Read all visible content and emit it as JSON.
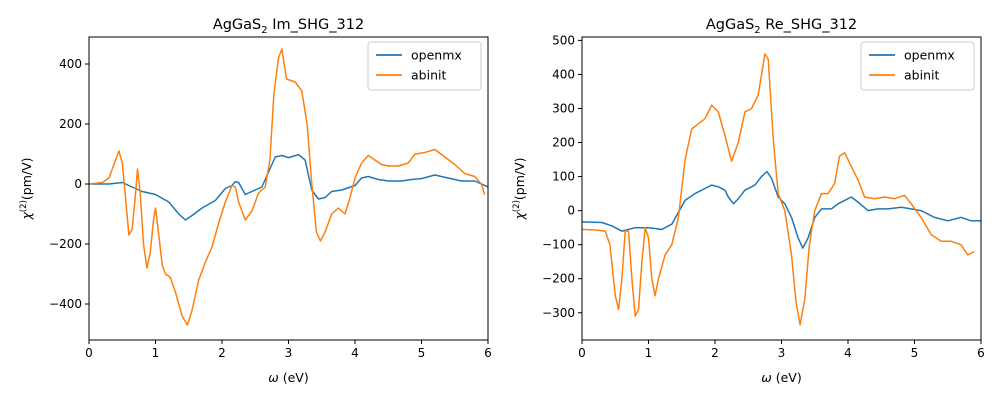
{
  "chart_data": [
    {
      "type": "line",
      "title_main": "AgGaS",
      "title_sub": "2",
      "title_rest": " Im_SHG_312",
      "xlabel_sym": "ω",
      "xlabel_rest": " (eV)",
      "ylabel_sym": "χ",
      "ylabel_sup": "(2)",
      "ylabel_rest": "(pm/V)",
      "xlim": [
        0,
        6
      ],
      "ylim": [
        -520,
        490
      ],
      "xticks": [
        0,
        1,
        2,
        3,
        4,
        5,
        6
      ],
      "yticks": [
        -400,
        -200,
        0,
        200,
        400
      ],
      "legend_position": "upper right",
      "series": [
        {
          "name": "openmx",
          "color": "#1f77b4",
          "points": [
            [
              0,
              0
            ],
            [
              0.3,
              0
            ],
            [
              0.5,
              5
            ],
            [
              0.6,
              -5
            ],
            [
              0.8,
              -25
            ],
            [
              1.0,
              -35
            ],
            [
              1.2,
              -60
            ],
            [
              1.35,
              -100
            ],
            [
              1.45,
              -120
            ],
            [
              1.55,
              -105
            ],
            [
              1.7,
              -80
            ],
            [
              1.9,
              -55
            ],
            [
              2.05,
              -15
            ],
            [
              2.15,
              -5
            ],
            [
              2.2,
              8
            ],
            [
              2.25,
              5
            ],
            [
              2.35,
              -35
            ],
            [
              2.45,
              -25
            ],
            [
              2.6,
              -10
            ],
            [
              2.8,
              90
            ],
            [
              2.9,
              95
            ],
            [
              3.0,
              88
            ],
            [
              3.15,
              98
            ],
            [
              3.25,
              80
            ],
            [
              3.35,
              -20
            ],
            [
              3.45,
              -50
            ],
            [
              3.55,
              -45
            ],
            [
              3.65,
              -25
            ],
            [
              3.8,
              -20
            ],
            [
              4.0,
              -5
            ],
            [
              4.1,
              20
            ],
            [
              4.2,
              25
            ],
            [
              4.35,
              15
            ],
            [
              4.5,
              10
            ],
            [
              4.7,
              10
            ],
            [
              4.85,
              15
            ],
            [
              5.0,
              18
            ],
            [
              5.2,
              30
            ],
            [
              5.4,
              20
            ],
            [
              5.6,
              10
            ],
            [
              5.8,
              10
            ],
            [
              6.0,
              -10
            ]
          ]
        },
        {
          "name": "abinit",
          "color": "#ff7f0e",
          "points": [
            [
              0,
              0
            ],
            [
              0.2,
              5
            ],
            [
              0.3,
              20
            ],
            [
              0.4,
              80
            ],
            [
              0.45,
              110
            ],
            [
              0.5,
              70
            ],
            [
              0.55,
              -50
            ],
            [
              0.6,
              -170
            ],
            [
              0.65,
              -150
            ],
            [
              0.7,
              -30
            ],
            [
              0.73,
              50
            ],
            [
              0.77,
              -30
            ],
            [
              0.82,
              -200
            ],
            [
              0.87,
              -280
            ],
            [
              0.92,
              -230
            ],
            [
              0.97,
              -120
            ],
            [
              1.0,
              -80
            ],
            [
              1.05,
              -170
            ],
            [
              1.1,
              -270
            ],
            [
              1.15,
              -300
            ],
            [
              1.22,
              -310
            ],
            [
              1.3,
              -360
            ],
            [
              1.4,
              -440
            ],
            [
              1.48,
              -470
            ],
            [
              1.55,
              -420
            ],
            [
              1.65,
              -320
            ],
            [
              1.75,
              -260
            ],
            [
              1.85,
              -210
            ],
            [
              1.95,
              -130
            ],
            [
              2.05,
              -60
            ],
            [
              2.15,
              -5
            ],
            [
              2.2,
              -10
            ],
            [
              2.25,
              -60
            ],
            [
              2.35,
              -120
            ],
            [
              2.45,
              -90
            ],
            [
              2.55,
              -30
            ],
            [
              2.65,
              -10
            ],
            [
              2.72,
              80
            ],
            [
              2.78,
              300
            ],
            [
              2.85,
              420
            ],
            [
              2.9,
              450
            ],
            [
              2.97,
              350
            ],
            [
              3.1,
              340
            ],
            [
              3.2,
              310
            ],
            [
              3.28,
              200
            ],
            [
              3.35,
              0
            ],
            [
              3.42,
              -160
            ],
            [
              3.48,
              -190
            ],
            [
              3.55,
              -160
            ],
            [
              3.65,
              -100
            ],
            [
              3.75,
              -80
            ],
            [
              3.85,
              -100
            ],
            [
              3.92,
              -50
            ],
            [
              4.0,
              20
            ],
            [
              4.1,
              70
            ],
            [
              4.2,
              95
            ],
            [
              4.3,
              80
            ],
            [
              4.4,
              65
            ],
            [
              4.5,
              60
            ],
            [
              4.65,
              60
            ],
            [
              4.8,
              70
            ],
            [
              4.9,
              100
            ],
            [
              5.05,
              105
            ],
            [
              5.2,
              115
            ],
            [
              5.35,
              90
            ],
            [
              5.5,
              65
            ],
            [
              5.65,
              35
            ],
            [
              5.8,
              25
            ],
            [
              5.9,
              0
            ],
            [
              5.95,
              -35
            ]
          ]
        }
      ]
    },
    {
      "type": "line",
      "title_main": "AgGaS",
      "title_sub": "2",
      "title_rest": " Re_SHG_312",
      "xlabel_sym": "ω",
      "xlabel_rest": " (eV)",
      "ylabel_sym": "χ",
      "ylabel_sup": "(2)",
      "ylabel_rest": "(pm/V)",
      "xlim": [
        0,
        6
      ],
      "ylim": [
        -380,
        510
      ],
      "xticks": [
        0,
        1,
        2,
        3,
        4,
        5,
        6
      ],
      "yticks": [
        -300,
        -200,
        -100,
        0,
        100,
        200,
        300,
        400,
        500
      ],
      "legend_position": "upper right",
      "series": [
        {
          "name": "openmx",
          "color": "#1f77b4",
          "points": [
            [
              0,
              -33
            ],
            [
              0.3,
              -35
            ],
            [
              0.45,
              -45
            ],
            [
              0.6,
              -60
            ],
            [
              0.8,
              -50
            ],
            [
              1.0,
              -50
            ],
            [
              1.2,
              -55
            ],
            [
              1.35,
              -40
            ],
            [
              1.45,
              -5
            ],
            [
              1.55,
              30
            ],
            [
              1.7,
              50
            ],
            [
              1.85,
              65
            ],
            [
              1.95,
              75
            ],
            [
              2.05,
              70
            ],
            [
              2.15,
              60
            ],
            [
              2.2,
              40
            ],
            [
              2.28,
              20
            ],
            [
              2.35,
              35
            ],
            [
              2.45,
              60
            ],
            [
              2.6,
              75
            ],
            [
              2.7,
              100
            ],
            [
              2.78,
              115
            ],
            [
              2.85,
              95
            ],
            [
              2.95,
              40
            ],
            [
              3.05,
              20
            ],
            [
              3.15,
              -20
            ],
            [
              3.25,
              -80
            ],
            [
              3.32,
              -110
            ],
            [
              3.4,
              -80
            ],
            [
              3.5,
              -20
            ],
            [
              3.6,
              5
            ],
            [
              3.75,
              5
            ],
            [
              3.85,
              20
            ],
            [
              4.0,
              35
            ],
            [
              4.05,
              40
            ],
            [
              4.15,
              25
            ],
            [
              4.3,
              0
            ],
            [
              4.45,
              5
            ],
            [
              4.6,
              5
            ],
            [
              4.8,
              10
            ],
            [
              4.95,
              5
            ],
            [
              5.1,
              0
            ],
            [
              5.3,
              -20
            ],
            [
              5.5,
              -30
            ],
            [
              5.7,
              -20
            ],
            [
              5.85,
              -30
            ],
            [
              6.0,
              -30
            ]
          ]
        },
        {
          "name": "abinit",
          "color": "#ff7f0e",
          "points": [
            [
              0,
              -55
            ],
            [
              0.2,
              -57
            ],
            [
              0.35,
              -60
            ],
            [
              0.42,
              -100
            ],
            [
              0.5,
              -250
            ],
            [
              0.55,
              -290
            ],
            [
              0.6,
              -200
            ],
            [
              0.65,
              -60
            ],
            [
              0.7,
              -60
            ],
            [
              0.75,
              -200
            ],
            [
              0.8,
              -310
            ],
            [
              0.85,
              -290
            ],
            [
              0.9,
              -150
            ],
            [
              0.95,
              -50
            ],
            [
              1.0,
              -80
            ],
            [
              1.05,
              -200
            ],
            [
              1.1,
              -250
            ],
            [
              1.15,
              -200
            ],
            [
              1.25,
              -130
            ],
            [
              1.35,
              -100
            ],
            [
              1.45,
              -20
            ],
            [
              1.55,
              150
            ],
            [
              1.65,
              240
            ],
            [
              1.75,
              255
            ],
            [
              1.85,
              270
            ],
            [
              1.95,
              310
            ],
            [
              2.05,
              290
            ],
            [
              2.15,
              220
            ],
            [
              2.25,
              145
            ],
            [
              2.35,
              200
            ],
            [
              2.45,
              290
            ],
            [
              2.55,
              300
            ],
            [
              2.65,
              340
            ],
            [
              2.75,
              460
            ],
            [
              2.8,
              445
            ],
            [
              2.88,
              200
            ],
            [
              2.95,
              50
            ],
            [
              3.05,
              0
            ],
            [
              3.15,
              -130
            ],
            [
              3.22,
              -270
            ],
            [
              3.28,
              -335
            ],
            [
              3.35,
              -260
            ],
            [
              3.42,
              -100
            ],
            [
              3.5,
              0
            ],
            [
              3.6,
              50
            ],
            [
              3.7,
              50
            ],
            [
              3.8,
              80
            ],
            [
              3.87,
              160
            ],
            [
              3.95,
              170
            ],
            [
              4.05,
              130
            ],
            [
              4.15,
              90
            ],
            [
              4.25,
              40
            ],
            [
              4.4,
              35
            ],
            [
              4.55,
              40
            ],
            [
              4.7,
              35
            ],
            [
              4.85,
              45
            ],
            [
              4.95,
              20
            ],
            [
              5.1,
              -20
            ],
            [
              5.25,
              -70
            ],
            [
              5.4,
              -90
            ],
            [
              5.55,
              -90
            ],
            [
              5.7,
              -100
            ],
            [
              5.8,
              -130
            ],
            [
              5.9,
              -120
            ]
          ]
        }
      ]
    }
  ]
}
